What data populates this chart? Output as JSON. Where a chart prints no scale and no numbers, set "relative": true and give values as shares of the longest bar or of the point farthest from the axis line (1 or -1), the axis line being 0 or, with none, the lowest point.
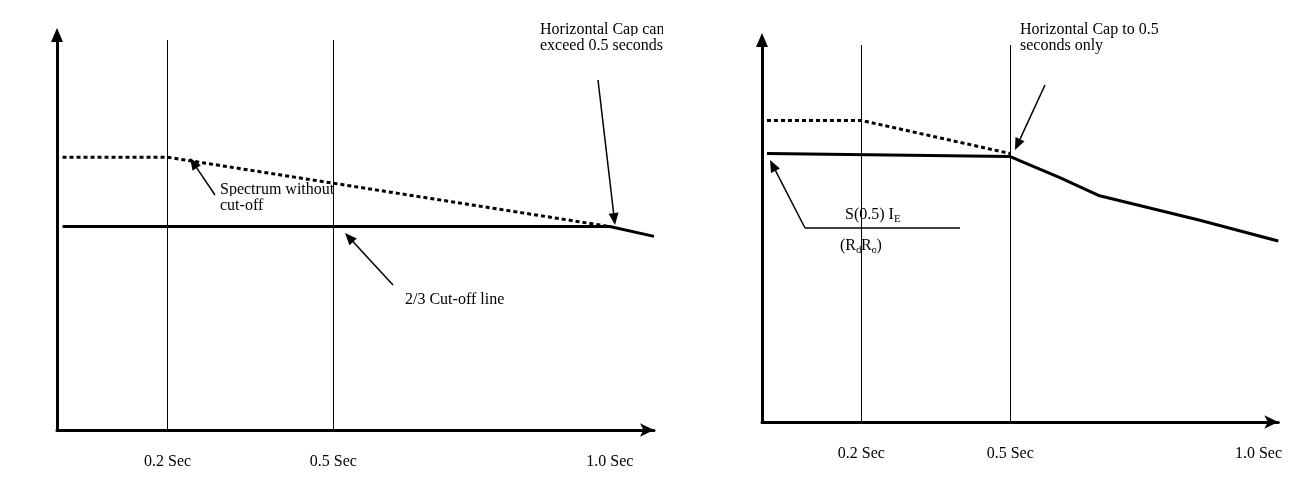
{
  "chart_data": [
    {
      "type": "line",
      "relative": true,
      "xlim": [
        0,
        1.08
      ],
      "xticks": [
        {
          "value": 0.2,
          "label": "0.2 Sec"
        },
        {
          "value": 0.5,
          "label": "0.5 Sec"
        },
        {
          "value": 1.0,
          "label": "1.0 Sec"
        }
      ],
      "grid": false,
      "marker": "none",
      "series": [
        {
          "color": "#000000",
          "line_style": "dotted",
          "x": [
            0.01,
            0.2,
            1.0
          ],
          "values": [
            1,
            1,
            0.746
          ]
        },
        {
          "color": "#000000",
          "line_style": "solid",
          "x": [
            0.01,
            1.0,
            1.08
          ],
          "values": [
            0.746,
            0.746,
            0.71
          ]
        }
      ],
      "ref_lines": [
        {
          "axis": "x",
          "value": 0.2,
          "color": "#000000"
        },
        {
          "axis": "x",
          "value": 0.5,
          "color": "#000000"
        }
      ],
      "annotations": [
        "Spectrum without cut-off",
        "Horizontal Cap can exceed 0.5 seconds",
        "2/3 Cut-off line"
      ]
    },
    {
      "type": "line",
      "relative": true,
      "xlim": [
        0,
        1.04
      ],
      "xticks": [
        {
          "value": 0.2,
          "label": "0.2 Sec"
        },
        {
          "value": 0.5,
          "label": "0.5 Sec"
        },
        {
          "value": 1.0,
          "label": "1.0 Sec"
        }
      ],
      "grid": false,
      "marker": "none",
      "series": [
        {
          "color": "#000000",
          "line_style": "dotted",
          "x": [
            0.01,
            0.2,
            0.5
          ],
          "values": [
            1,
            1,
            0.89
          ]
        },
        {
          "color": "#000000",
          "line_style": "solid",
          "x": [
            0.01,
            0.5,
            0.6,
            0.68,
            0.88,
            1.04
          ],
          "values": [
            0.89,
            0.88,
            0.81,
            0.75,
            0.67,
            0.6
          ]
        }
      ],
      "ref_lines": [
        {
          "axis": "x",
          "value": 0.2,
          "color": "#000000"
        },
        {
          "axis": "x",
          "value": 0.5,
          "color": "#000000"
        }
      ],
      "annotations": [
        "Horizontal Cap to 0.5 seconds only",
        "S(0.5) I$_{E}$",
        "(R$_{d}$R$_{o}$)"
      ]
    }
  ]
}
